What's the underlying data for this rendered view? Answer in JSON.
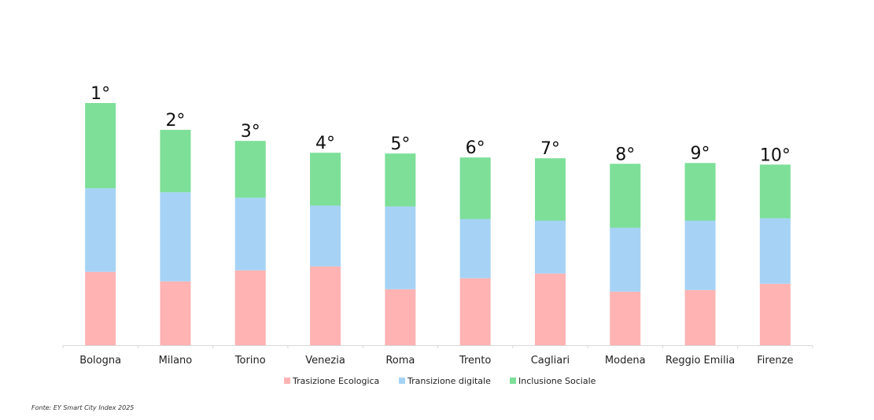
{
  "chart_data": {
    "type": "bar",
    "stacked": true,
    "categories": [
      "Bologna",
      "Milano",
      "Torino",
      "Venezia",
      "Roma",
      "Trento",
      "Cagliari",
      "Modena",
      "Reggio Emilia",
      "Firenze"
    ],
    "ranks": [
      "1°",
      "2°",
      "3°",
      "4°",
      "5°",
      "6°",
      "7°",
      "8°",
      "9°",
      "10°"
    ],
    "series": [
      {
        "name": "Trasizione Ecologica",
        "color": "#ffb3b3",
        "values": [
          93,
          81,
          95,
          100,
          71,
          85,
          91,
          68,
          70,
          78
        ]
      },
      {
        "name": "Transizione digitale",
        "color": "#a6d3f5",
        "values": [
          106,
          113,
          92,
          77,
          105,
          75,
          67,
          81,
          88,
          83
        ]
      },
      {
        "name": "Inclusione Sociale",
        "color": "#7ddf98",
        "values": [
          108,
          79,
          72,
          67,
          67,
          78,
          79,
          81,
          73,
          68
        ]
      }
    ],
    "legend_position": "bottom",
    "grid": false,
    "ylim": [
      0,
      310
    ]
  },
  "source_note": "Fonte: EY Smart City Index 2025"
}
